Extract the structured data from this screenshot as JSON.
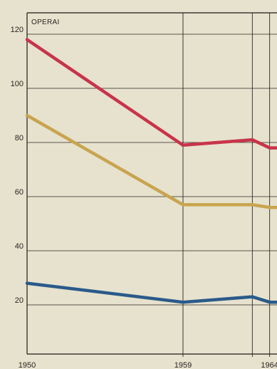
{
  "chart_data": {
    "type": "line",
    "title": "OPERAI",
    "xlabel": "",
    "ylabel": "",
    "x": [
      1950,
      1959,
      1963,
      1964
    ],
    "x_ticks": [
      "1950",
      "1959",
      "1964"
    ],
    "y_ticks": [
      "20",
      "40",
      "60",
      "80",
      "100",
      "120"
    ],
    "ylim": [
      0,
      130
    ],
    "grid": true,
    "series": [
      {
        "color": "#c8344a",
        "values": [
          118,
          79,
          81,
          78
        ]
      },
      {
        "color": "#c9a44e",
        "values": [
          90,
          57,
          57,
          56
        ]
      },
      {
        "color": "#2a5a8a",
        "values": [
          28,
          21,
          23,
          21
        ]
      }
    ]
  }
}
